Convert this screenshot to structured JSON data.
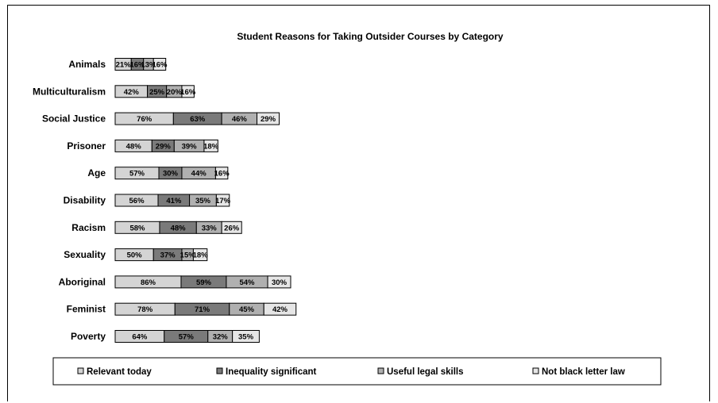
{
  "chart_data": {
    "type": "bar",
    "orientation": "horizontal",
    "stacked": true,
    "title": "Student Reasons for Taking Outsider Courses by Category",
    "categories": [
      "Animals",
      "Multiculturalism",
      "Social Justice",
      "Prisoner",
      "Age",
      "Disability",
      "Racism",
      "Sexuality",
      "Aboriginal",
      "Feminist",
      "Poverty"
    ],
    "series": [
      {
        "name": "Relevant today",
        "color": "#d4d4d4",
        "values": [
          21,
          42,
          76,
          48,
          57,
          56,
          58,
          50,
          86,
          78,
          64
        ]
      },
      {
        "name": "Inequality significant",
        "color": "#7a7a7a",
        "values": [
          16,
          25,
          63,
          29,
          30,
          41,
          48,
          37,
          59,
          71,
          57
        ]
      },
      {
        "name": "Useful legal skills",
        "color": "#b0b0b0",
        "values": [
          13,
          20,
          46,
          39,
          44,
          35,
          33,
          15,
          54,
          45,
          32
        ]
      },
      {
        "name": "Not black letter law",
        "color": "#e6e6e6",
        "values": [
          16,
          16,
          29,
          18,
          16,
          17,
          26,
          18,
          30,
          42,
          35
        ]
      }
    ],
    "value_suffix": "%",
    "grid": false,
    "legend_position": "bottom"
  }
}
